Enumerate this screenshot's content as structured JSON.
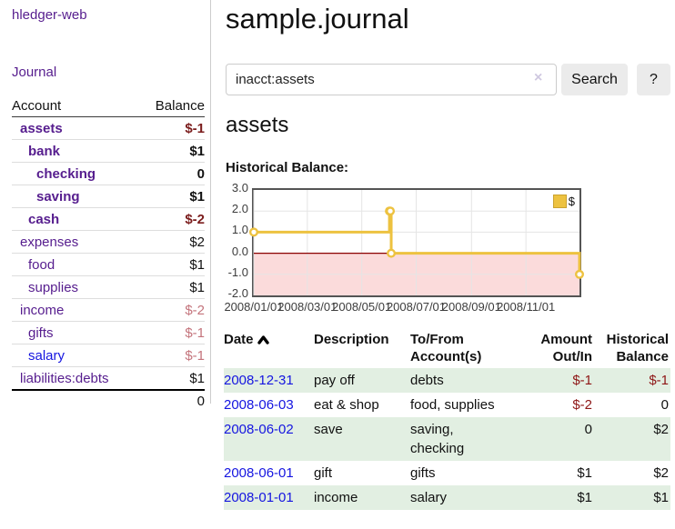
{
  "sidebar": {
    "app_title": "hledger-web",
    "journal_link": "Journal",
    "accounts_header": {
      "account": "Account",
      "balance": "Balance"
    },
    "accounts": [
      {
        "name": "assets",
        "indent": 0,
        "bold": true,
        "balance": "$-1",
        "balance_style": "neg-strong"
      },
      {
        "name": "bank",
        "indent": 1,
        "bold": true,
        "balance": "$1",
        "balance_style": "pos"
      },
      {
        "name": "checking",
        "indent": 2,
        "bold": true,
        "balance": "0",
        "balance_style": "pos"
      },
      {
        "name": "saving",
        "indent": 2,
        "bold": true,
        "balance": "$1",
        "balance_style": "pos"
      },
      {
        "name": "cash",
        "indent": 1,
        "bold": true,
        "balance": "$-2",
        "balance_style": "neg-strong"
      },
      {
        "name": "expenses",
        "indent": 0,
        "bold": false,
        "balance": "$2",
        "balance_style": "pos"
      },
      {
        "name": "food",
        "indent": 1,
        "bold": false,
        "balance": "$1",
        "balance_style": "pos"
      },
      {
        "name": "supplies",
        "indent": 1,
        "bold": false,
        "balance": "$1",
        "balance_style": "pos"
      },
      {
        "name": "income",
        "indent": 0,
        "bold": false,
        "balance": "$-2",
        "balance_style": "neg-soft"
      },
      {
        "name": "gifts",
        "indent": 1,
        "bold": false,
        "balance": "$-1",
        "balance_style": "neg-soft"
      },
      {
        "name": "salary",
        "indent": 1,
        "bold": false,
        "balance": "$-1",
        "balance_style": "neg-soft",
        "link_style": "blue"
      },
      {
        "name": "liabilities:debts",
        "indent": 0,
        "bold": false,
        "balance": "$1",
        "balance_style": "pos"
      }
    ],
    "total": "0"
  },
  "header": {
    "title": "sample.journal"
  },
  "search": {
    "value": "inacct:assets",
    "clear_icon": "×",
    "button_label": "Search",
    "help_label": "?"
  },
  "account_page": {
    "heading": "assets",
    "chart_label": "Historical Balance:"
  },
  "chart_data": {
    "type": "line",
    "step": true,
    "title": "Historical Balance",
    "series": [
      {
        "name": "$",
        "color": "#edc240",
        "points": [
          {
            "date": "2008-01-01",
            "day": 0,
            "value": 1
          },
          {
            "date": "2008-06-01",
            "day": 152,
            "value": 2
          },
          {
            "date": "2008-06-02",
            "day": 153,
            "value": 2
          },
          {
            "date": "2008-06-03",
            "day": 154,
            "value": 0
          },
          {
            "date": "2008-12-31",
            "day": 365,
            "value": -1
          }
        ]
      }
    ],
    "x_range_days": [
      0,
      365
    ],
    "x_ticks": [
      {
        "label": "2008/01/01",
        "day": 0
      },
      {
        "label": "2008/03/01",
        "day": 60
      },
      {
        "label": "2008/05/01",
        "day": 121
      },
      {
        "label": "2008/07/01",
        "day": 182
      },
      {
        "label": "2008/09/01",
        "day": 244
      },
      {
        "label": "2008/11/01",
        "day": 305
      }
    ],
    "y_ticks": [
      "3.0",
      "2.0",
      "1.0",
      "0.0",
      "-1.0",
      "-2.0"
    ],
    "y_tick_values": [
      3,
      2,
      1,
      0,
      -1,
      -2
    ],
    "ylim": [
      -2,
      3
    ],
    "legend": {
      "label": "$",
      "position": "top-right"
    },
    "grid": true
  },
  "register": {
    "columns": [
      "Date",
      "Description",
      "To/From Account(s)",
      "Amount Out/In",
      "Historical Balance"
    ],
    "sort_icon": "caret-up",
    "rows": [
      {
        "date": "2008-12-31",
        "description": "pay off",
        "accounts": "debts",
        "amount": "$-1",
        "amount_negative": true,
        "balance": "$-1",
        "balance_negative": true
      },
      {
        "date": "2008-06-03",
        "description": "eat & shop",
        "accounts": "food, supplies",
        "amount": "$-2",
        "amount_negative": true,
        "balance": "0",
        "balance_negative": false
      },
      {
        "date": "2008-06-02",
        "description": "save",
        "accounts": "saving, checking",
        "amount": "0",
        "amount_negative": false,
        "balance": "$2",
        "balance_negative": false
      },
      {
        "date": "2008-06-01",
        "description": "gift",
        "accounts": "gifts",
        "amount": "$1",
        "amount_negative": false,
        "balance": "$2",
        "balance_negative": false
      },
      {
        "date": "2008-01-01",
        "description": "income",
        "accounts": "salary",
        "amount": "$1",
        "amount_negative": false,
        "balance": "$1",
        "balance_negative": false
      }
    ]
  },
  "colors": {
    "link_purple": "#561d8e",
    "link_blue": "#1515e0",
    "negative_strong": "#7b1d1d",
    "negative_soft": "#c4747c",
    "negative_table": "#8e1616",
    "row_green": "#e2efe2",
    "series_yellow": "#edc240",
    "negative_region": "#fbdbdb",
    "zero_line": "#8b0000",
    "gridline": "#e5e5e5"
  }
}
